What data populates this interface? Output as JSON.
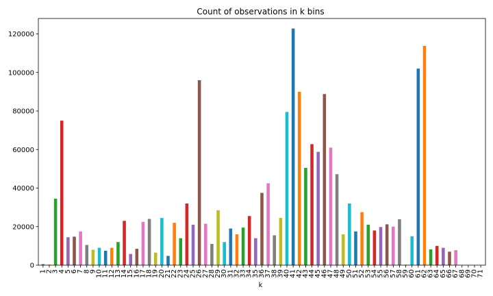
{
  "chart_data": {
    "type": "bar",
    "title": "Count of observations in k bins",
    "xlabel": "k",
    "ylabel": "",
    "ylim": [
      0,
      128000
    ],
    "yticks": [
      0,
      20000,
      40000,
      60000,
      80000,
      100000,
      120000
    ],
    "ytick_labels": [
      "0",
      "20000",
      "40000",
      "60000",
      "80000",
      "100000",
      "120000"
    ],
    "grid": false,
    "legend": "none",
    "palette": [
      "#1f77b4",
      "#ff7f0e",
      "#2ca02c",
      "#d62728",
      "#9467bd",
      "#8c564b",
      "#e377c2",
      "#7f7f7f",
      "#bcbd22",
      "#17becf"
    ],
    "categories": [
      "1",
      "2",
      "3",
      "4",
      "5",
      "6",
      "7",
      "8",
      "9",
      "10",
      "11",
      "12",
      "13",
      "14",
      "15",
      "16",
      "17",
      "18",
      "19",
      "20",
      "21",
      "22",
      "23",
      "24",
      "25",
      "26",
      "27",
      "28",
      "29",
      "30",
      "31",
      "32",
      "33",
      "34",
      "35",
      "36",
      "37",
      "38",
      "39",
      "40",
      "41",
      "42",
      "43",
      "44",
      "45",
      "46",
      "47",
      "48",
      "49",
      "50",
      "51",
      "52",
      "53",
      "54",
      "55",
      "56",
      "57",
      "58",
      "59",
      "60",
      "61",
      "62",
      "63",
      "64",
      "65",
      "66",
      "67",
      "68",
      "69",
      "70",
      "71"
    ],
    "values": [
      500,
      300,
      34500,
      75000,
      14500,
      14800,
      17500,
      10500,
      8000,
      9000,
      7500,
      9000,
      12000,
      23000,
      5800,
      8500,
      22500,
      24000,
      6500,
      24500,
      4800,
      22000,
      14000,
      32000,
      21000,
      96000,
      21500,
      11000,
      28500,
      12000,
      19000,
      16000,
      19500,
      25500,
      14000,
      37500,
      42500,
      15500,
      24500,
      79500,
      122800,
      90000,
      50500,
      62800,
      58800,
      88800,
      61000,
      47200,
      16000,
      32000,
      17500,
      27500,
      21000,
      18000,
      19800,
      21200,
      20000,
      23800,
      300,
      15000,
      102000,
      113800,
      8200,
      10000,
      9000,
      7000,
      7800,
      0,
      0,
      0,
      0
    ]
  }
}
